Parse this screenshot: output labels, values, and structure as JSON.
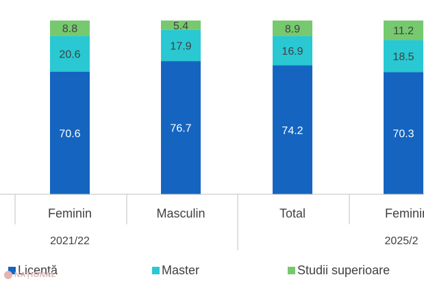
{
  "chart_data": {
    "type": "bar",
    "stacked": true,
    "categories": [
      "Feminin",
      "Masculin",
      "Total",
      "Feminin"
    ],
    "groups": [
      {
        "label": "2021/22",
        "categories": [
          0,
          1
        ]
      },
      {
        "label": "2025/2",
        "categories": [
          2,
          3
        ]
      }
    ],
    "series": [
      {
        "name": "Licență",
        "color": "#1565c0",
        "values": [
          70.6,
          76.7,
          74.2,
          70.3
        ]
      },
      {
        "name": "Master",
        "color": "#29c8d2",
        "values": [
          20.6,
          17.9,
          16.9,
          18.5
        ]
      },
      {
        "name": "Studii superioare",
        "color": "#76c96e",
        "values": [
          8.8,
          5.4,
          8.9,
          11.2
        ]
      }
    ],
    "data_labels": [
      [
        "70.6",
        "76.7",
        "74.2",
        "70.3"
      ],
      [
        "20.6",
        "17.9",
        "16.9",
        "18.5"
      ],
      [
        "8.8",
        "5.4",
        "8.9",
        "11.2"
      ]
    ],
    "ylim": [
      0,
      100
    ],
    "legend_position": "bottom",
    "grid": false
  },
  "legend": {
    "items": [
      "Licență",
      "Master",
      "Studii superioare"
    ]
  },
  "watermark": {
    "text": "NAȚIONAL"
  }
}
